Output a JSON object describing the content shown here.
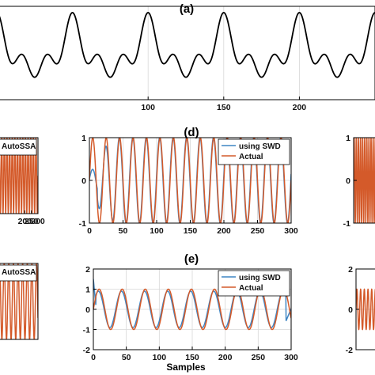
{
  "colors": {
    "swd": "#3f86c4",
    "actual": "#d45a2a",
    "main": "#000000",
    "grid": "#d7d7d7"
  },
  "chart_data": [
    {
      "id": "a",
      "type": "line",
      "title": "(a)",
      "xlim": [
        0,
        250
      ],
      "ylim": [
        -1.3,
        1.3
      ],
      "xticks": [
        100,
        150,
        200
      ],
      "yticks": [],
      "series": [
        {
          "color": "main",
          "model": "composite"
        }
      ]
    },
    {
      "id": "c-partial",
      "type": "line",
      "title": "",
      "xlim": [
        0,
        300
      ],
      "ylim": [
        -1,
        1
      ],
      "xticks": [
        200,
        250,
        300
      ],
      "yticks": [],
      "legend": [
        "AutoSSA"
      ],
      "series": [
        {
          "color": "actual",
          "model": "sine",
          "period": 20
        }
      ]
    },
    {
      "id": "d",
      "type": "line",
      "title": "(d)",
      "xlim": [
        0,
        300
      ],
      "ylim": [
        -1,
        1
      ],
      "xticks": [
        0,
        50,
        100,
        150,
        200,
        250,
        300
      ],
      "yticks": [
        1,
        0,
        -1
      ],
      "legend": [
        "using SWD",
        "Actual"
      ],
      "series": [
        {
          "name": "using SWD",
          "color": "swd",
          "model": "swd-d",
          "period": 20
        },
        {
          "name": "Actual",
          "color": "actual",
          "model": "sine",
          "period": 20
        }
      ]
    },
    {
      "id": "e-right-partial",
      "type": "line",
      "title": "",
      "xlim": [
        0,
        300
      ],
      "ylim": [
        -1,
        1
      ],
      "xticks": [],
      "yticks": [
        1,
        0,
        -1
      ],
      "series": [
        {
          "color": "actual",
          "model": "sine",
          "period": 20
        }
      ]
    },
    {
      "id": "f-partial",
      "type": "line",
      "title": "",
      "xlim": [
        0,
        300
      ],
      "ylim": [
        -1,
        1
      ],
      "xticks": [],
      "yticks": [],
      "legend": [
        "AutoSSA"
      ],
      "series": [
        {
          "color": "actual",
          "model": "sine",
          "period": 35
        }
      ]
    },
    {
      "id": "e",
      "type": "line",
      "title": "(e)",
      "xlabel": "Samples",
      "xlim": [
        0,
        300
      ],
      "ylim": [
        -2,
        2
      ],
      "xticks": [
        0,
        50,
        100,
        150,
        200,
        250,
        300
      ],
      "yticks": [
        2,
        1,
        0,
        -1,
        -2
      ],
      "legend": [
        "using SWD",
        "Actual"
      ],
      "series": [
        {
          "name": "using SWD",
          "color": "swd",
          "model": "swd-e",
          "period": 35
        },
        {
          "name": "Actual",
          "color": "actual",
          "model": "sine",
          "period": 35
        }
      ]
    },
    {
      "id": "h-partial",
      "type": "line",
      "title": "",
      "xlim": [
        0,
        300
      ],
      "ylim": [
        -2,
        2
      ],
      "xticks": [],
      "yticks": [
        2,
        0,
        -2
      ],
      "series": [
        {
          "color": "actual",
          "model": "sine",
          "period": 35
        }
      ]
    }
  ]
}
